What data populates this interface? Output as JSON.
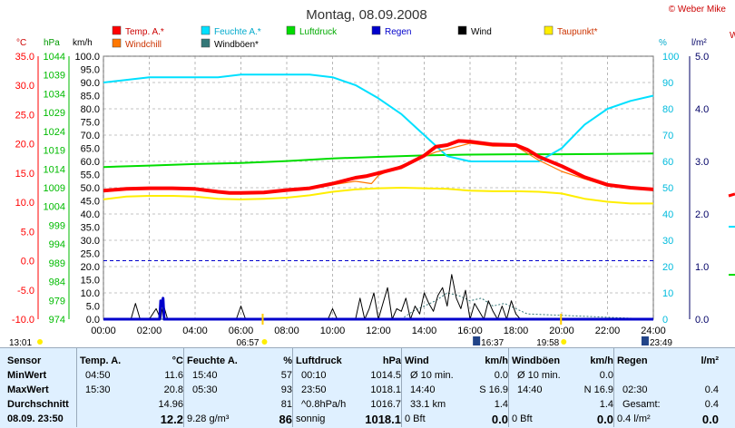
{
  "header": {
    "title": "Montag, 08.09.2008",
    "credit": "© Weber Mike",
    "cut_off_right": "W"
  },
  "legend": [
    {
      "label": "Temp. A.*",
      "color": "#ff0000"
    },
    {
      "label": "Feuchte A.*",
      "color": "#00e0ff"
    },
    {
      "label": "Luftdruck",
      "color": "#00dd00"
    },
    {
      "label": "Regen",
      "color": "#0000cc"
    },
    {
      "label": "Wind",
      "color": "#000000"
    },
    {
      "label": "Taupunkt*",
      "color": "#ffee00"
    },
    {
      "label": "Windchill",
      "color": "#ff7700"
    },
    {
      "label": "Windböen*",
      "color": "#337777"
    }
  ],
  "axes": {
    "temp_unit": "°C",
    "pressure_unit": "hPa",
    "wind_unit": "km/h",
    "humidity_unit": "%",
    "rain_unit": "l/m²",
    "temp_ticks": [
      "35.0",
      "30.0",
      "25.0",
      "20.0",
      "15.0",
      "10.0",
      "5.0",
      "0.0",
      "-5.0",
      "-10.0"
    ],
    "pressure_ticks": [
      "1044",
      "1039",
      "1034",
      "1029",
      "1024",
      "1019",
      "1014",
      "1009",
      "1004",
      "999",
      "994",
      "989",
      "984",
      "979",
      "974"
    ],
    "wind_ticks": [
      "100.0",
      "95.0",
      "90.0",
      "85.0",
      "80.0",
      "75.0",
      "70.0",
      "65.0",
      "60.0",
      "55.0",
      "50.0",
      "45.0",
      "40.0",
      "35.0",
      "30.0",
      "25.0",
      "20.0",
      "15.0",
      "10.0",
      "5.0",
      "0.0"
    ],
    "humidity_ticks": [
      "100",
      "90",
      "80",
      "70",
      "60",
      "50",
      "40",
      "30",
      "20",
      "10",
      "0"
    ],
    "rain_ticks": [
      "5.0",
      "4.0",
      "3.0",
      "2.0",
      "1.0",
      "0.0"
    ],
    "time_ticks": [
      "00:00",
      "02:00",
      "04:00",
      "06:00",
      "08:00",
      "10:00",
      "12:00",
      "14:00",
      "16:00",
      "18:00",
      "20:00",
      "22:00",
      "24:00"
    ]
  },
  "sun_markers": {
    "moonrise": "13:01",
    "sunrise": "06:57",
    "moonset": "16:37",
    "sunset": "19:58",
    "moon2": "23:49"
  },
  "chart_data": {
    "type": "line",
    "title": "Montag, 08.09.2008",
    "x_unit": "hours",
    "xlim": [
      0,
      24
    ],
    "series": [
      {
        "name": "Temp. A.*",
        "axis": "°C",
        "ylim": [
          -10,
          35
        ],
        "color": "#ff0000",
        "x": [
          0,
          1,
          2,
          3,
          4,
          5,
          5.5,
          6,
          7,
          8,
          9,
          10,
          11,
          11.5,
          12,
          13,
          14,
          14.5,
          15,
          15.5,
          16,
          17,
          18,
          18.5,
          19,
          20,
          21,
          22,
          23,
          24
        ],
        "y": [
          12.0,
          12.3,
          12.4,
          12.4,
          12.3,
          11.8,
          11.6,
          11.6,
          11.7,
          12.1,
          12.4,
          13.2,
          14.2,
          14.5,
          15.0,
          16.0,
          18.0,
          19.5,
          19.8,
          20.5,
          20.4,
          19.9,
          19.8,
          19.0,
          17.8,
          16.2,
          14.3,
          13.0,
          12.5,
          12.2
        ]
      },
      {
        "name": "Windchill",
        "axis": "°C",
        "ylim": [
          -10,
          35
        ],
        "color": "#ff7700",
        "x": [
          0,
          2,
          4,
          6,
          8,
          10,
          11,
          11.7,
          12,
          13,
          14,
          14.5,
          15,
          16,
          17,
          18,
          19,
          20,
          21,
          22,
          23,
          24
        ],
        "y": [
          12.0,
          12.4,
          12.3,
          11.6,
          12.1,
          13.0,
          13.6,
          13.2,
          14.6,
          16.3,
          17.8,
          18.6,
          19.1,
          20.1,
          19.6,
          19.6,
          17.2,
          15.3,
          14.0,
          12.8,
          12.4,
          12.2
        ]
      },
      {
        "name": "Taupunkt*",
        "axis": "°C",
        "ylim": [
          -10,
          35
        ],
        "color": "#ffee00",
        "x": [
          0,
          1,
          2,
          3,
          4,
          5,
          6,
          7,
          8,
          9,
          10,
          11,
          12,
          13,
          14,
          15,
          16,
          17,
          18,
          19,
          20,
          21,
          22,
          23,
          24
        ],
        "y": [
          10.5,
          11.0,
          11.1,
          11.1,
          11.0,
          10.6,
          10.5,
          10.6,
          10.8,
          11.2,
          11.8,
          12.2,
          12.4,
          12.5,
          12.4,
          12.3,
          12.0,
          11.9,
          11.9,
          11.8,
          11.5,
          10.6,
          10.1,
          9.8,
          9.8
        ]
      },
      {
        "name": "Feuchte A.*",
        "axis": "%",
        "ylim": [
          0,
          100
        ],
        "color": "#00e0ff",
        "x": [
          0,
          1,
          2,
          3,
          4,
          5,
          6,
          7,
          8,
          9,
          10,
          11,
          12,
          13,
          14,
          15,
          16,
          17,
          18,
          19,
          20,
          21,
          22,
          23,
          24
        ],
        "y": [
          90,
          91,
          92,
          92,
          92,
          92,
          93,
          93,
          93,
          93,
          92,
          89,
          84,
          78,
          70,
          62,
          60,
          60,
          60,
          60,
          65,
          74,
          80,
          83,
          85
        ]
      },
      {
        "name": "Luftdruck",
        "axis": "hPa",
        "ylim": [
          974,
          1044
        ],
        "color": "#00dd00",
        "x": [
          0,
          2,
          4,
          6,
          8,
          10,
          12,
          14,
          16,
          18,
          20,
          22,
          24
        ],
        "y": [
          1014.5,
          1014.9,
          1015.3,
          1015.6,
          1016.1,
          1016.8,
          1017.2,
          1017.6,
          1017.8,
          1017.9,
          1017.9,
          1018.0,
          1018.1
        ]
      },
      {
        "name": "Wind",
        "axis": "km/h",
        "ylim": [
          0,
          100
        ],
        "color": "#000000",
        "x": [
          0,
          1.2,
          1.4,
          1.6,
          2.0,
          2.3,
          2.5,
          2.6,
          2.8,
          3.0,
          5.8,
          6.0,
          6.2,
          9.8,
          10.0,
          10.2,
          11.0,
          11.2,
          11.4,
          11.6,
          11.8,
          12.0,
          12.2,
          12.4,
          12.6,
          12.8,
          13.0,
          13.2,
          13.4,
          13.6,
          13.8,
          14.0,
          14.2,
          14.4,
          14.6,
          14.8,
          15.0,
          15.2,
          15.4,
          15.6,
          15.8,
          16.0,
          16.2,
          16.4,
          16.6,
          16.8,
          17.0,
          17.2,
          17.4,
          17.6,
          17.8,
          18.0,
          18.2,
          18.4,
          24
        ],
        "y": [
          0,
          0,
          6,
          0,
          0,
          4,
          0,
          6,
          0,
          0,
          0,
          5,
          0,
          0,
          4,
          0,
          0,
          8,
          0,
          4,
          10,
          0,
          6,
          12,
          0,
          4,
          3,
          8,
          0,
          5,
          2,
          10,
          6,
          3,
          9,
          12,
          5,
          17,
          8,
          4,
          11,
          0,
          6,
          3,
          0,
          7,
          3,
          0,
          5,
          0,
          7,
          2,
          0,
          0,
          0
        ]
      },
      {
        "name": "Windböen*",
        "axis": "km/h",
        "ylim": [
          0,
          100
        ],
        "color": "#337777",
        "x": [
          0,
          13,
          13.5,
          14,
          14.5,
          15,
          15.5,
          16,
          16.5,
          17,
          17.5,
          18,
          18.5,
          24
        ],
        "y": [
          0,
          0,
          3,
          5,
          7,
          10,
          9,
          7,
          8,
          5,
          6,
          4,
          2,
          0
        ]
      },
      {
        "name": "Regen",
        "axis": "l/m²",
        "ylim": [
          0,
          5
        ],
        "color": "#0000cc",
        "x": [
          0,
          2.45,
          2.5,
          2.55,
          2.6,
          2.65,
          24
        ],
        "y": [
          0,
          0,
          0.35,
          0.25,
          0.4,
          0,
          0
        ]
      }
    ]
  },
  "stats_table": {
    "sensor_col": {
      "header": "Sensor",
      "rows": [
        "MinWert",
        "MaxWert",
        "Durchschnitt"
      ],
      "footer": "08.09.  23:50"
    },
    "columns": [
      {
        "header": "Temp. A.",
        "unit": "°C",
        "min": [
          "04:50",
          "11.6"
        ],
        "max": [
          "15:30",
          "20.8"
        ],
        "avg": [
          "",
          "14.96"
        ],
        "current": [
          "",
          "12.2"
        ]
      },
      {
        "header": "Feuchte A.",
        "unit": "%",
        "min": [
          "15:40",
          "57"
        ],
        "max": [
          "05:30",
          "93"
        ],
        "avg": [
          "",
          "81"
        ],
        "current": [
          "9.28 g/m³",
          "86"
        ]
      },
      {
        "header": "Luftdruck",
        "unit": "hPa",
        "min": [
          "00:10",
          "1014.5"
        ],
        "max": [
          "23:50",
          "1018.1"
        ],
        "avg": [
          "^0.8hPa/h",
          "1016.7"
        ],
        "current": [
          "sonnig",
          "1018.1"
        ]
      },
      {
        "header": "Wind",
        "unit": "km/h",
        "min": [
          "Ø 10 min.",
          "0.0"
        ],
        "max": [
          "14:40",
          "S 16.9"
        ],
        "avg": [
          "33.1 km",
          "1.4"
        ],
        "current": [
          "0 Bft",
          "0.0"
        ]
      },
      {
        "header": "Windböen",
        "unit": "km/h",
        "min": [
          "Ø 10 min.",
          "0.0"
        ],
        "max": [
          "14:40",
          "N 16.9"
        ],
        "avg": [
          "",
          "1.4"
        ],
        "current": [
          "0 Bft",
          "0.0"
        ]
      },
      {
        "header": "Regen",
        "unit": "l/m²",
        "min": [
          "",
          ""
        ],
        "max": [
          "02:30",
          "0.4"
        ],
        "avg": [
          "Gesamt:",
          "0.4"
        ],
        "current": [
          "0.4 l/m²",
          "0.0"
        ]
      }
    ]
  }
}
